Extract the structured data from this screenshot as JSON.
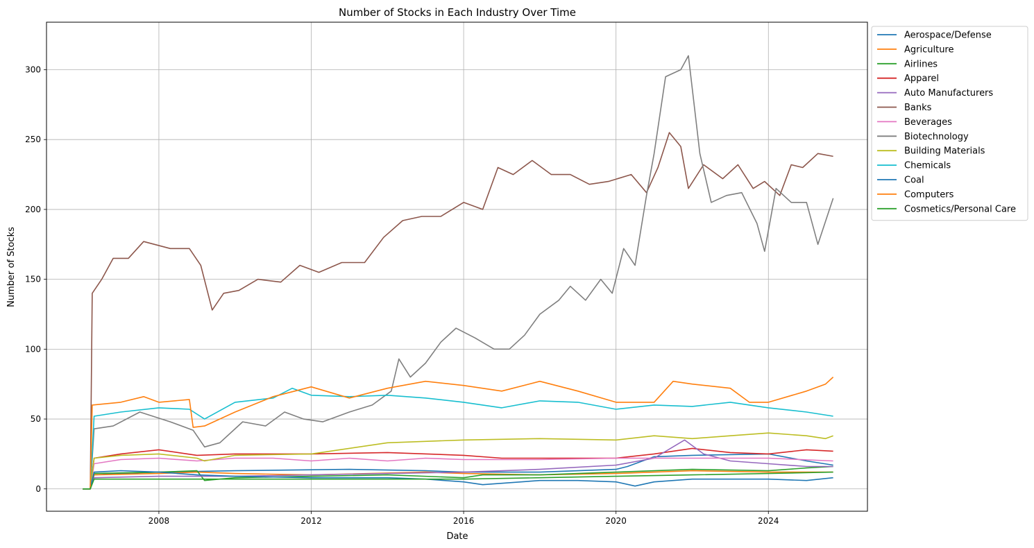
{
  "chart_data": {
    "type": "line",
    "title": "Number of Stocks in Each Industry Over Time",
    "xlabel": "Date",
    "ylabel": "Number of Stocks",
    "x_ticks": [
      "2008",
      "2012",
      "2016",
      "2020",
      "2024"
    ],
    "y_ticks": [
      0,
      50,
      100,
      150,
      200,
      250,
      300
    ],
    "xlim": [
      2005.05,
      2026.6
    ],
    "ylim": [
      -16,
      334
    ],
    "grid": true,
    "legend_position": "outside-top-right",
    "series": [
      {
        "name": "Aerospace/Defense",
        "color": "#1f77b4",
        "x": [
          2006.0,
          2006.2,
          2006.3,
          2007.0,
          2008.0,
          2010.0,
          2013.0,
          2015.0,
          2016.0,
          2018.0,
          2019.0,
          2020.0,
          2020.3,
          2020.6,
          2021.0,
          2022.0,
          2024.0,
          2025.0,
          2025.7
        ],
        "y": [
          0,
          0,
          10,
          11,
          12,
          13,
          14,
          13,
          12,
          12,
          13,
          14,
          16,
          19,
          23,
          24,
          25,
          20,
          17
        ]
      },
      {
        "name": "Agriculture",
        "color": "#ff7f0e",
        "x": [
          2006.0,
          2006.2,
          2006.3,
          2008.0,
          2009.0,
          2010.0,
          2012.0,
          2015.0,
          2016.0,
          2018.0,
          2020.0,
          2022.0,
          2024.0,
          2025.7
        ],
        "y": [
          0,
          0,
          10,
          11,
          12,
          11,
          10,
          12,
          11,
          10,
          11,
          13,
          12,
          12
        ]
      },
      {
        "name": "Airlines",
        "color": "#2ca02c",
        "x": [
          2006.0,
          2006.2,
          2006.3,
          2008.0,
          2009.0,
          2009.2,
          2010.0,
          2012.0,
          2014.0,
          2016.0,
          2016.5,
          2018.0,
          2020.0,
          2022.0,
          2024.0,
          2025.0,
          2025.7
        ],
        "y": [
          0,
          0,
          11,
          12,
          13,
          6,
          8,
          9,
          10,
          8,
          10,
          10,
          12,
          14,
          13,
          15,
          16
        ]
      },
      {
        "name": "Apparel",
        "color": "#d62728",
        "x": [
          2006.0,
          2006.2,
          2006.3,
          2007.0,
          2008.0,
          2009.0,
          2010.0,
          2012.0,
          2014.0,
          2016.0,
          2017.0,
          2018.0,
          2020.0,
          2021.0,
          2022.0,
          2023.0,
          2024.0,
          2025.0,
          2025.7
        ],
        "y": [
          0,
          0,
          22,
          25,
          28,
          24,
          25,
          25,
          26,
          24,
          22,
          22,
          22,
          25,
          29,
          26,
          25,
          28,
          27
        ]
      },
      {
        "name": "Auto Manufacturers",
        "color": "#9467bd",
        "x": [
          2006.0,
          2006.2,
          2006.3,
          2008.0,
          2010.0,
          2012.0,
          2014.0,
          2016.0,
          2018.0,
          2020.0,
          2021.0,
          2021.8,
          2022.3,
          2023.0,
          2024.0,
          2025.0,
          2025.7
        ],
        "y": [
          0,
          0,
          8,
          9,
          9,
          10,
          11,
          12,
          14,
          17,
          22,
          35,
          25,
          20,
          18,
          16,
          16
        ]
      },
      {
        "name": "Banks",
        "color": "#8c564b",
        "x": [
          2006.0,
          2006.2,
          2006.25,
          2006.5,
          2006.8,
          2007.2,
          2007.6,
          2008.3,
          2008.8,
          2009.1,
          2009.4,
          2009.7,
          2010.1,
          2010.6,
          2011.2,
          2011.7,
          2012.2,
          2012.8,
          2013.4,
          2013.9,
          2014.4,
          2014.9,
          2015.4,
          2016.0,
          2016.5,
          2016.9,
          2017.3,
          2017.8,
          2018.3,
          2018.8,
          2019.3,
          2019.8,
          2020.4,
          2020.8,
          2021.1,
          2021.4,
          2021.7,
          2021.9,
          2022.3,
          2022.8,
          2023.2,
          2023.6,
          2023.9,
          2024.3,
          2024.6,
          2024.9,
          2025.3,
          2025.7
        ],
        "y": [
          0,
          0,
          140,
          150,
          165,
          165,
          177,
          172,
          172,
          160,
          128,
          140,
          142,
          150,
          148,
          160,
          155,
          162,
          162,
          180,
          192,
          195,
          195,
          205,
          200,
          230,
          225,
          235,
          225,
          225,
          218,
          220,
          225,
          212,
          230,
          255,
          245,
          215,
          232,
          222,
          232,
          215,
          220,
          210,
          232,
          230,
          240,
          238
        ]
      },
      {
        "name": "Beverages",
        "color": "#e377c2",
        "x": [
          2006.0,
          2006.2,
          2006.3,
          2007.0,
          2008.0,
          2009.0,
          2010.0,
          2011.0,
          2012.0,
          2013.0,
          2014.0,
          2015.0,
          2016.0,
          2018.0,
          2020.0,
          2022.0,
          2024.0,
          2025.7
        ],
        "y": [
          0,
          0,
          18,
          21,
          22,
          20,
          22,
          22,
          20,
          22,
          20,
          22,
          21,
          21,
          22,
          22,
          22,
          20
        ]
      },
      {
        "name": "Biotechnology",
        "color": "#7f7f7f",
        "x": [
          2006.0,
          2006.2,
          2006.3,
          2006.8,
          2007.5,
          2008.3,
          2008.9,
          2009.2,
          2009.6,
          2010.2,
          2010.8,
          2011.3,
          2011.8,
          2012.3,
          2013.0,
          2013.6,
          2014.1,
          2014.3,
          2014.6,
          2015.0,
          2015.4,
          2015.8,
          2016.3,
          2016.8,
          2017.2,
          2017.6,
          2018.0,
          2018.5,
          2018.8,
          2019.2,
          2019.6,
          2019.9,
          2020.2,
          2020.5,
          2020.8,
          2021.0,
          2021.3,
          2021.7,
          2021.9,
          2022.2,
          2022.5,
          2022.9,
          2023.3,
          2023.7,
          2023.9,
          2024.2,
          2024.6,
          2025.0,
          2025.3,
          2025.7
        ],
        "y": [
          0,
          0,
          43,
          45,
          55,
          48,
          42,
          30,
          33,
          48,
          45,
          55,
          50,
          48,
          55,
          60,
          70,
          93,
          80,
          90,
          105,
          115,
          108,
          100,
          100,
          110,
          125,
          135,
          145,
          135,
          150,
          140,
          172,
          160,
          210,
          240,
          295,
          300,
          310,
          240,
          205,
          210,
          212,
          190,
          170,
          215,
          205,
          205,
          175,
          208
        ]
      },
      {
        "name": "Building Materials",
        "color": "#bcbd22",
        "x": [
          2006.0,
          2006.2,
          2006.3,
          2007.0,
          2008.0,
          2009.0,
          2009.2,
          2010.0,
          2012.0,
          2014.0,
          2016.0,
          2018.0,
          2020.0,
          2021.0,
          2022.0,
          2023.0,
          2024.0,
          2025.0,
          2025.5,
          2025.7
        ],
        "y": [
          0,
          0,
          22,
          24,
          25,
          22,
          20,
          24,
          25,
          33,
          35,
          36,
          35,
          38,
          36,
          38,
          40,
          38,
          36,
          38
        ]
      },
      {
        "name": "Chemicals",
        "color": "#17becf",
        "x": [
          2006.0,
          2006.2,
          2006.3,
          2007.0,
          2008.0,
          2008.8,
          2009.2,
          2010.0,
          2011.0,
          2011.5,
          2012.0,
          2013.0,
          2014.0,
          2015.0,
          2016.0,
          2017.0,
          2018.0,
          2019.0,
          2020.0,
          2021.0,
          2022.0,
          2023.0,
          2024.0,
          2025.0,
          2025.7
        ],
        "y": [
          0,
          0,
          52,
          55,
          58,
          57,
          50,
          62,
          65,
          72,
          67,
          66,
          67,
          65,
          62,
          58,
          63,
          62,
          57,
          60,
          59,
          62,
          58,
          55,
          52
        ]
      },
      {
        "name": "Coal",
        "color": "#1f77b4",
        "x": [
          2006.0,
          2006.2,
          2006.3,
          2007.0,
          2008.0,
          2009.0,
          2010.0,
          2012.0,
          2014.0,
          2015.0,
          2016.0,
          2016.5,
          2018.0,
          2019.0,
          2020.0,
          2020.5,
          2021.0,
          2022.0,
          2024.0,
          2025.0,
          2025.7
        ],
        "y": [
          0,
          0,
          12,
          13,
          12,
          10,
          9,
          8,
          8,
          7,
          5,
          3,
          6,
          6,
          5,
          2,
          5,
          7,
          7,
          6,
          8
        ]
      },
      {
        "name": "Computers",
        "color": "#ff7f0e",
        "x": [
          2006.0,
          2006.2,
          2006.25,
          2007.0,
          2007.6,
          2008.0,
          2008.8,
          2008.9,
          2009.2,
          2010.0,
          2011.0,
          2012.0,
          2013.0,
          2014.0,
          2015.0,
          2016.0,
          2017.0,
          2018.0,
          2019.0,
          2020.0,
          2021.0,
          2021.5,
          2022.0,
          2023.0,
          2023.5,
          2024.0,
          2025.0,
          2025.5,
          2025.7
        ],
        "y": [
          0,
          0,
          60,
          62,
          66,
          62,
          64,
          44,
          45,
          55,
          66,
          73,
          65,
          72,
          77,
          74,
          70,
          77,
          70,
          62,
          62,
          77,
          75,
          72,
          62,
          62,
          70,
          75,
          80
        ]
      },
      {
        "name": "Cosmetics/Personal Care",
        "color": "#2ca02c",
        "x": [
          2006.0,
          2006.2,
          2006.3,
          2008.0,
          2010.0,
          2012.0,
          2014.0,
          2016.0,
          2018.0,
          2020.0,
          2022.0,
          2024.0,
          2025.7
        ],
        "y": [
          0,
          0,
          7,
          7,
          7,
          7,
          7,
          7,
          8,
          9,
          10,
          11,
          12
        ]
      }
    ]
  }
}
